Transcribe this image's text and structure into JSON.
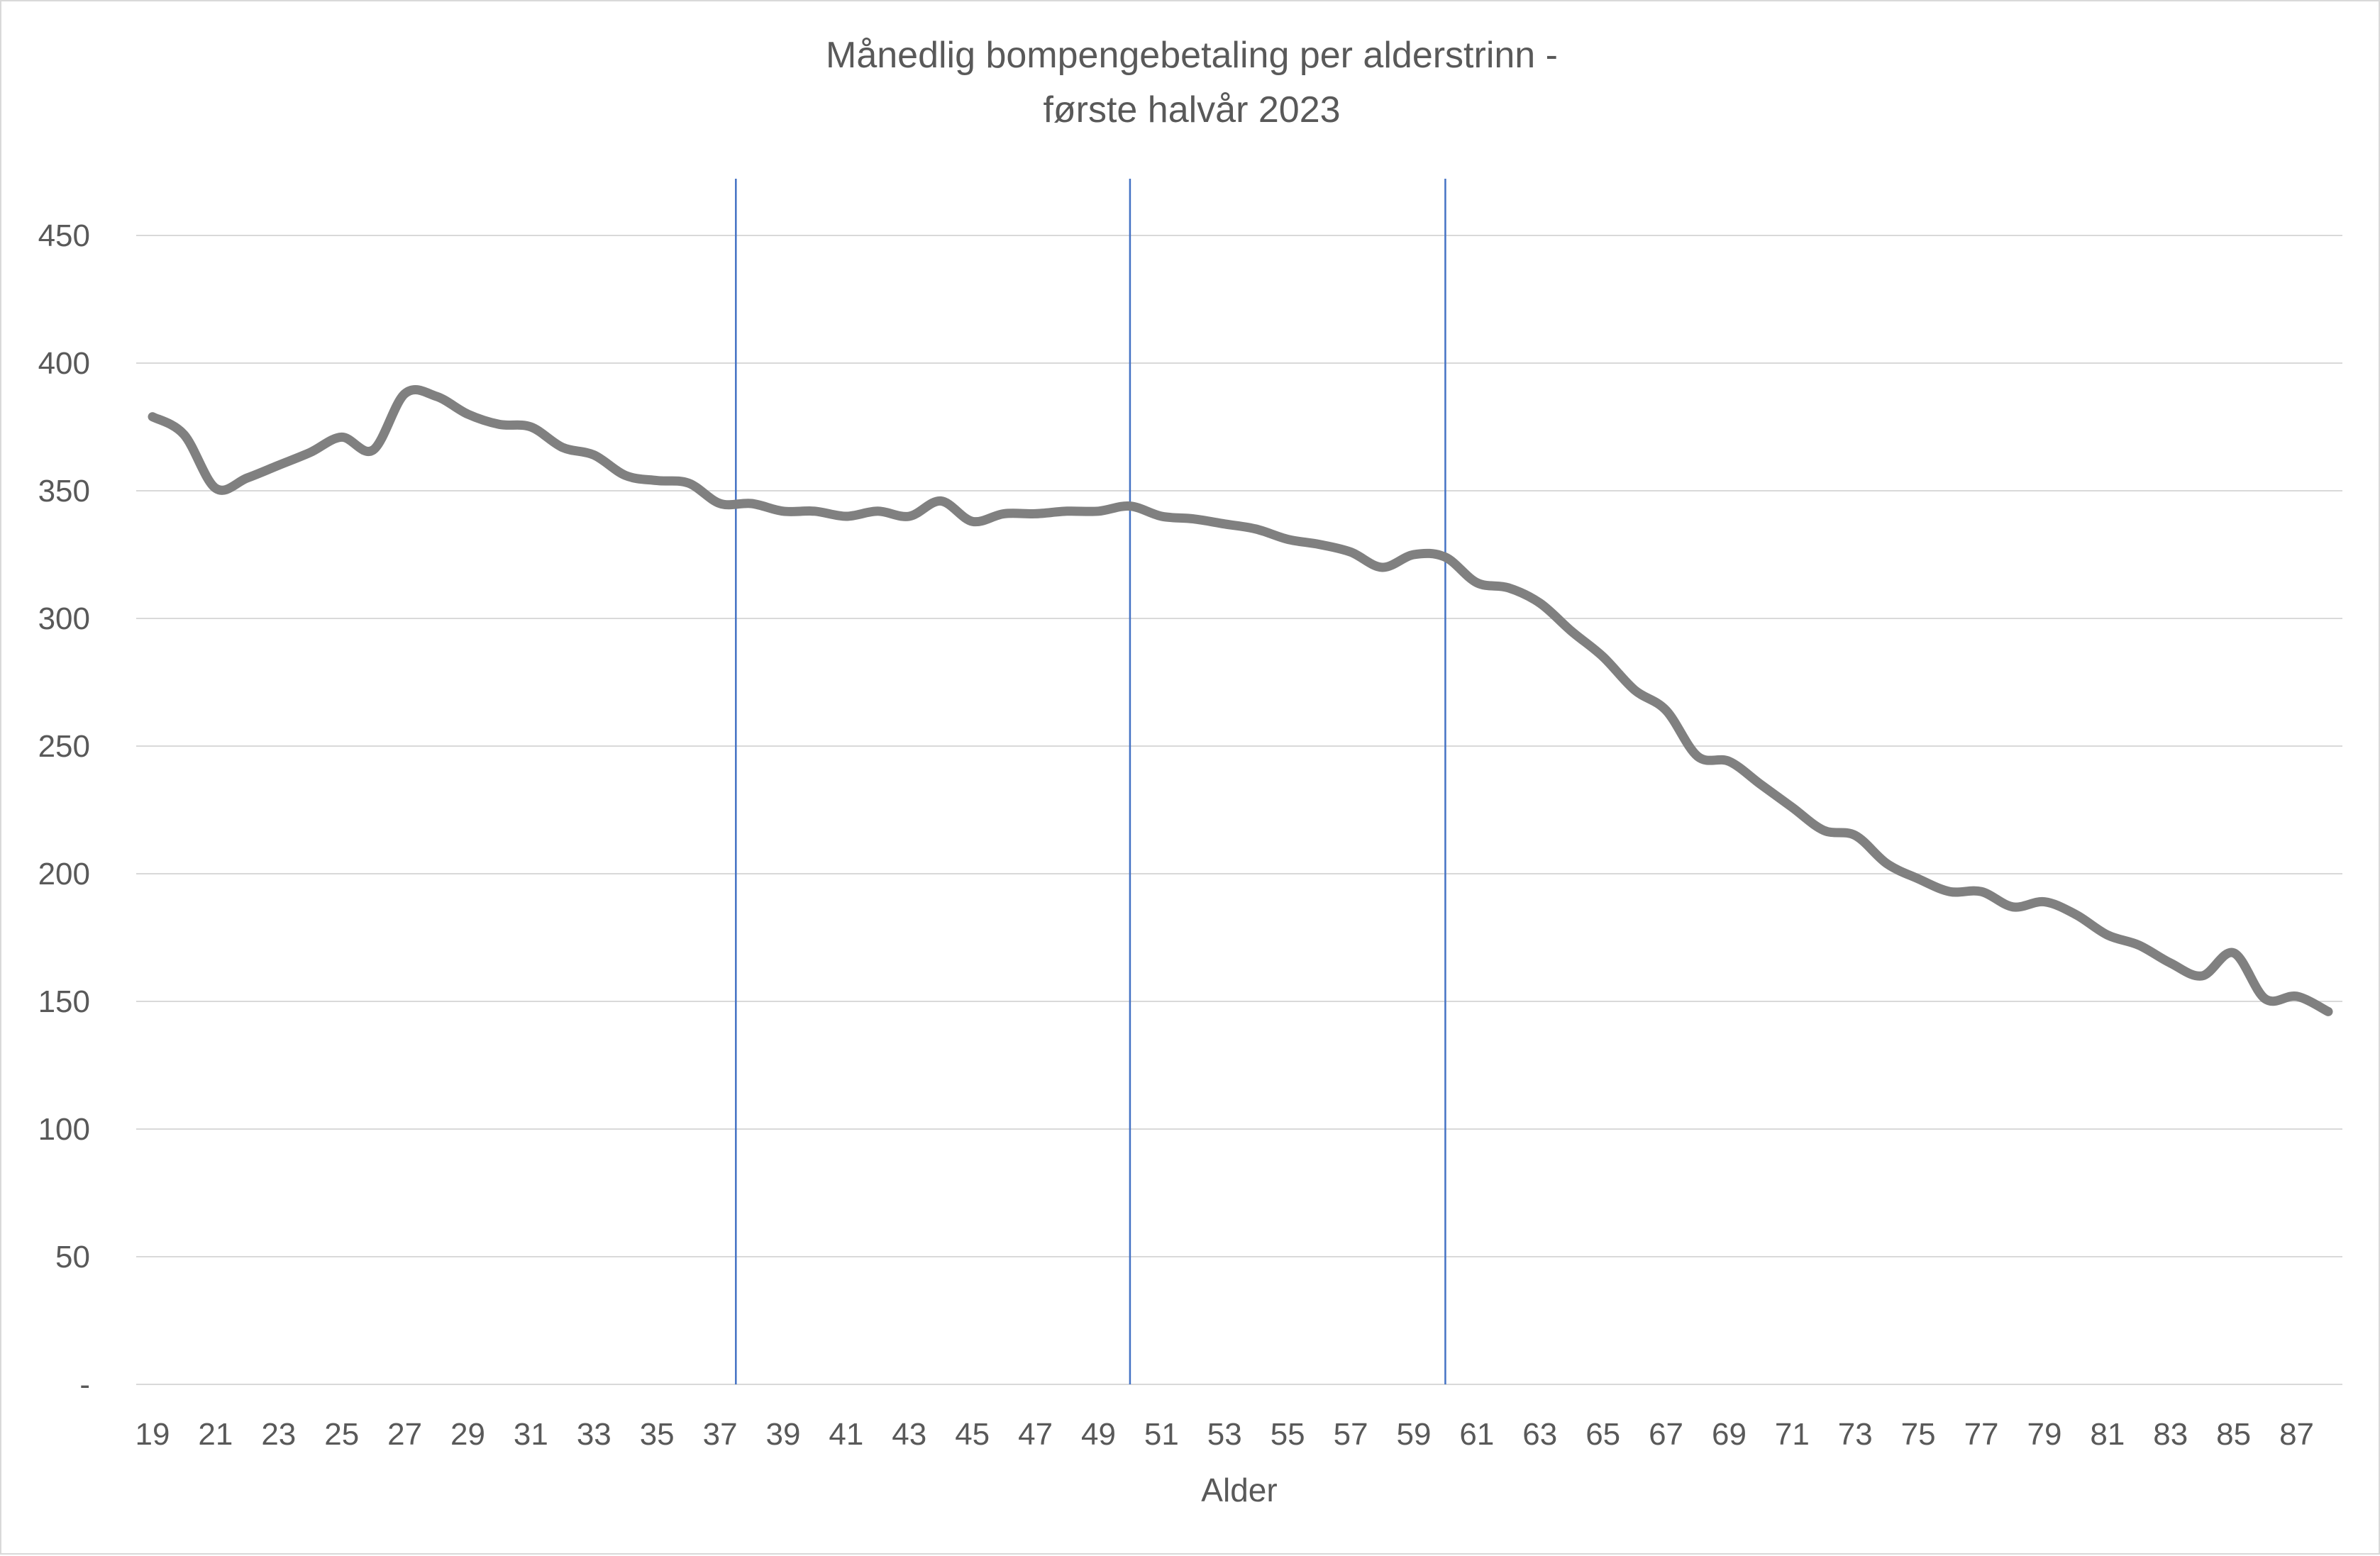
{
  "chart_data": {
    "type": "line",
    "title_lines": [
      "Månedlig bompengebetaling per alderstrinn -",
      "første halvår 2023"
    ],
    "xlabel": "Alder",
    "ylabel": "",
    "ylim": [
      0,
      450
    ],
    "y_ticks": [
      0,
      50,
      100,
      150,
      200,
      250,
      300,
      350,
      400,
      450
    ],
    "y_tick_labels": [
      "-",
      "50",
      "100",
      "150",
      "200",
      "250",
      "300",
      "350",
      "400",
      "450"
    ],
    "x_tick_labels": [
      "19",
      "21",
      "23",
      "25",
      "27",
      "29",
      "31",
      "33",
      "35",
      "37",
      "39",
      "41",
      "43",
      "45",
      "47",
      "49",
      "51",
      "53",
      "55",
      "57",
      "59",
      "61",
      "63",
      "65",
      "67",
      "69",
      "71",
      "73",
      "75",
      "77",
      "79",
      "81",
      "83",
      "85",
      "87"
    ],
    "grid": true,
    "reference_lines_x": [
      37.5,
      50,
      60
    ],
    "line_color": "#808080",
    "reference_line_color": "#4472c4",
    "grid_color": "#d9d9d9",
    "x": [
      19,
      20,
      21,
      22,
      23,
      24,
      25,
      26,
      27,
      28,
      29,
      30,
      31,
      32,
      33,
      34,
      35,
      36,
      37,
      38,
      39,
      40,
      41,
      42,
      43,
      44,
      45,
      46,
      47,
      48,
      49,
      50,
      51,
      52,
      53,
      54,
      55,
      56,
      57,
      58,
      59,
      60,
      61,
      62,
      63,
      64,
      65,
      66,
      67,
      68,
      69,
      70,
      71,
      72,
      73,
      74,
      75,
      76,
      77,
      78,
      79,
      80,
      81,
      82,
      83,
      84,
      85,
      86,
      87,
      88
    ],
    "values": [
      379,
      372,
      351,
      355,
      360,
      365,
      371,
      366,
      388,
      387,
      380,
      376,
      375,
      367,
      364,
      356,
      354,
      353,
      345,
      345,
      342,
      342,
      340,
      342,
      340,
      346,
      338,
      341,
      341,
      342,
      342,
      344,
      340,
      339,
      337,
      335,
      331,
      329,
      326,
      320,
      325,
      324,
      314,
      312,
      306,
      295,
      285,
      272,
      264,
      246,
      244,
      235,
      226,
      217,
      215,
      204,
      198,
      193,
      193,
      187,
      189,
      184,
      176,
      172,
      165,
      160,
      169,
      151,
      152,
      146
    ],
    "series": [
      {
        "values_ref": "values"
      }
    ]
  }
}
